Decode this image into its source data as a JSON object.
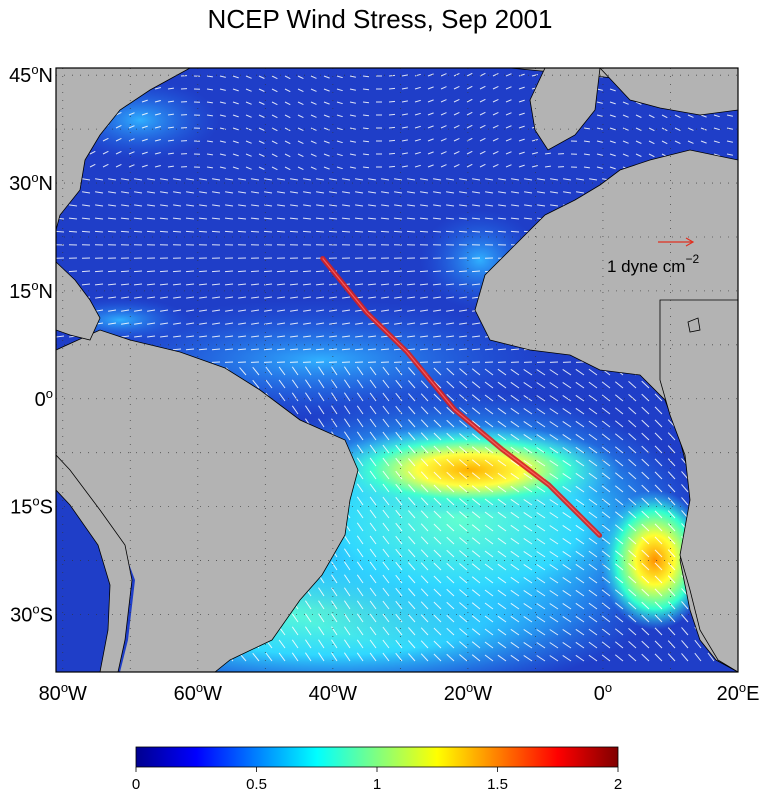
{
  "title": "NCEP Wind Stress, Sep 2001",
  "map": {
    "lon_range": [
      -81,
      20
    ],
    "lat_range": [
      -38,
      46
    ],
    "land_color": "#b3b3b3",
    "ocean_low_color": "#1f3ec8",
    "x_ticks": [
      {
        "lon": -80,
        "deg": "80",
        "hemi": "W"
      },
      {
        "lon": -60,
        "deg": "60",
        "hemi": "W"
      },
      {
        "lon": -40,
        "deg": "40",
        "hemi": "W"
      },
      {
        "lon": -20,
        "deg": "20",
        "hemi": "W"
      },
      {
        "lon": 0,
        "deg": "0",
        "hemi": ""
      },
      {
        "lon": 20,
        "deg": "20",
        "hemi": "E"
      }
    ],
    "y_ticks": [
      {
        "lat": 45,
        "deg": "45",
        "hemi": "N"
      },
      {
        "lat": 30,
        "deg": "30",
        "hemi": "N"
      },
      {
        "lat": 15,
        "deg": "15",
        "hemi": "N"
      },
      {
        "lat": 0,
        "deg": "0",
        "hemi": ""
      },
      {
        "lat": -15,
        "deg": "15",
        "hemi": "S"
      },
      {
        "lat": -30,
        "deg": "30",
        "hemi": "S"
      }
    ],
    "track_color": "#d42020",
    "track_points": [
      [
        -41.5,
        19.5
      ],
      [
        -35,
        12
      ],
      [
        -29,
        6.5
      ],
      [
        -22,
        -1.5
      ],
      [
        -15,
        -7
      ],
      [
        -8,
        -12
      ],
      [
        -0.5,
        -19
      ]
    ],
    "reference_vector": {
      "label": "1 dyne cm",
      "exponent": "−2",
      "color": "#e03020"
    }
  },
  "colorbar": {
    "min": 0,
    "max": 2,
    "ticks": [
      "0",
      "0.5",
      "1",
      "1.5",
      "2"
    ],
    "colors": [
      "#00008f",
      "#0000ff",
      "#0080ff",
      "#00ffff",
      "#80ff80",
      "#ffff00",
      "#ff8000",
      "#ff0000",
      "#800000"
    ]
  }
}
